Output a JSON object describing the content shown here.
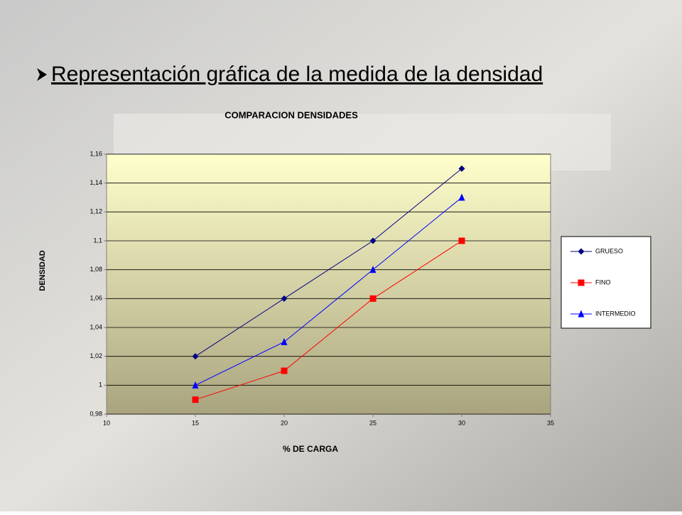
{
  "heading": "Representación gráfica de la medida de la densidad",
  "chart_data": {
    "type": "line",
    "title": "COMPARACION DENSIDADES",
    "x_label": "% DE CARGA",
    "y_label": "DENSIDAD",
    "x": [
      15,
      20,
      25,
      30
    ],
    "series": [
      {
        "name": "GRUESO",
        "color": "#000080",
        "marker": "diamond",
        "values": [
          1.02,
          1.06,
          1.1,
          1.15
        ]
      },
      {
        "name": "FINO",
        "color": "#ff0000",
        "marker": "square",
        "values": [
          0.99,
          1.01,
          1.06,
          1.1
        ]
      },
      {
        "name": "INTERMEDIO",
        "color": "#0000ff",
        "marker": "triangle",
        "values": [
          1.0,
          1.03,
          1.08,
          1.13
        ]
      }
    ],
    "xlim": [
      10,
      35
    ],
    "xticks": [
      10,
      15,
      20,
      25,
      30,
      35
    ],
    "ylim": [
      0.98,
      1.16
    ],
    "yticks": [
      {
        "value": 0.98,
        "label": "0,98"
      },
      1,
      {
        "value": 1.02,
        "label": "1,02"
      },
      {
        "value": 1.04,
        "label": "1,04"
      },
      {
        "value": 1.06,
        "label": "1,06"
      },
      {
        "value": 1.08,
        "label": "1,08"
      },
      {
        "value": 1.1,
        "label": "1,1"
      },
      {
        "value": 1.12,
        "label": "1,12"
      },
      {
        "value": 1.14,
        "label": "1,14"
      },
      {
        "value": 1.16,
        "label": "1,16"
      }
    ],
    "grid": true,
    "legend": "right"
  }
}
